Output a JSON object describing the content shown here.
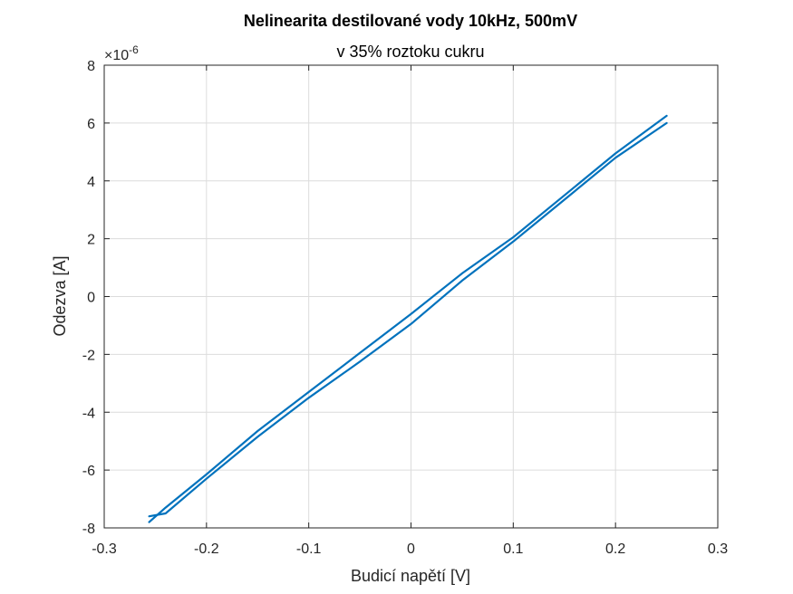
{
  "chart_data": {
    "type": "line",
    "title": "Nelinearita destilované vody 10kHz, 500mV",
    "subtitle": "v 35% roztoku cukru",
    "xlabel": "Budicí napětí [V]",
    "ylabel": "Odezva [A]",
    "y_exponent_label": "×10",
    "y_exponent_value": "-6",
    "xlim": [
      -0.3,
      0.3
    ],
    "ylim": [
      -8,
      8
    ],
    "xticks": [
      -0.3,
      -0.2,
      -0.1,
      0,
      0.1,
      0.2,
      0.3
    ],
    "xtick_labels": [
      "-0.3",
      "-0.2",
      "-0.1",
      "0",
      "0.1",
      "0.2",
      "0.3"
    ],
    "yticks": [
      -8,
      -6,
      -4,
      -2,
      0,
      2,
      4,
      6,
      8
    ],
    "ytick_labels": [
      "-8",
      "-6",
      "-4",
      "-2",
      "0",
      "2",
      "4",
      "6",
      "8"
    ],
    "y_scale": 1e-06,
    "grid": true,
    "line_color": "#0072BD",
    "series": [
      {
        "x": [
          -0.256,
          -0.24,
          -0.2,
          -0.15,
          -0.1,
          -0.05,
          0,
          0.05,
          0.1,
          0.15,
          0.2,
          0.25
        ],
        "y": [
          -7.8,
          -7.3,
          -6.15,
          -4.65,
          -3.3,
          -1.95,
          -0.6,
          0.8,
          2.05,
          3.5,
          4.95,
          6.25
        ]
      },
      {
        "x": [
          0.25,
          0.2,
          0.15,
          0.1,
          0.05,
          0,
          -0.05,
          -0.1,
          -0.15,
          -0.2,
          -0.24,
          -0.256
        ],
        "y": [
          6.0,
          4.8,
          3.35,
          1.9,
          0.55,
          -0.95,
          -2.25,
          -3.5,
          -4.85,
          -6.3,
          -7.5,
          -7.6
        ]
      }
    ]
  }
}
